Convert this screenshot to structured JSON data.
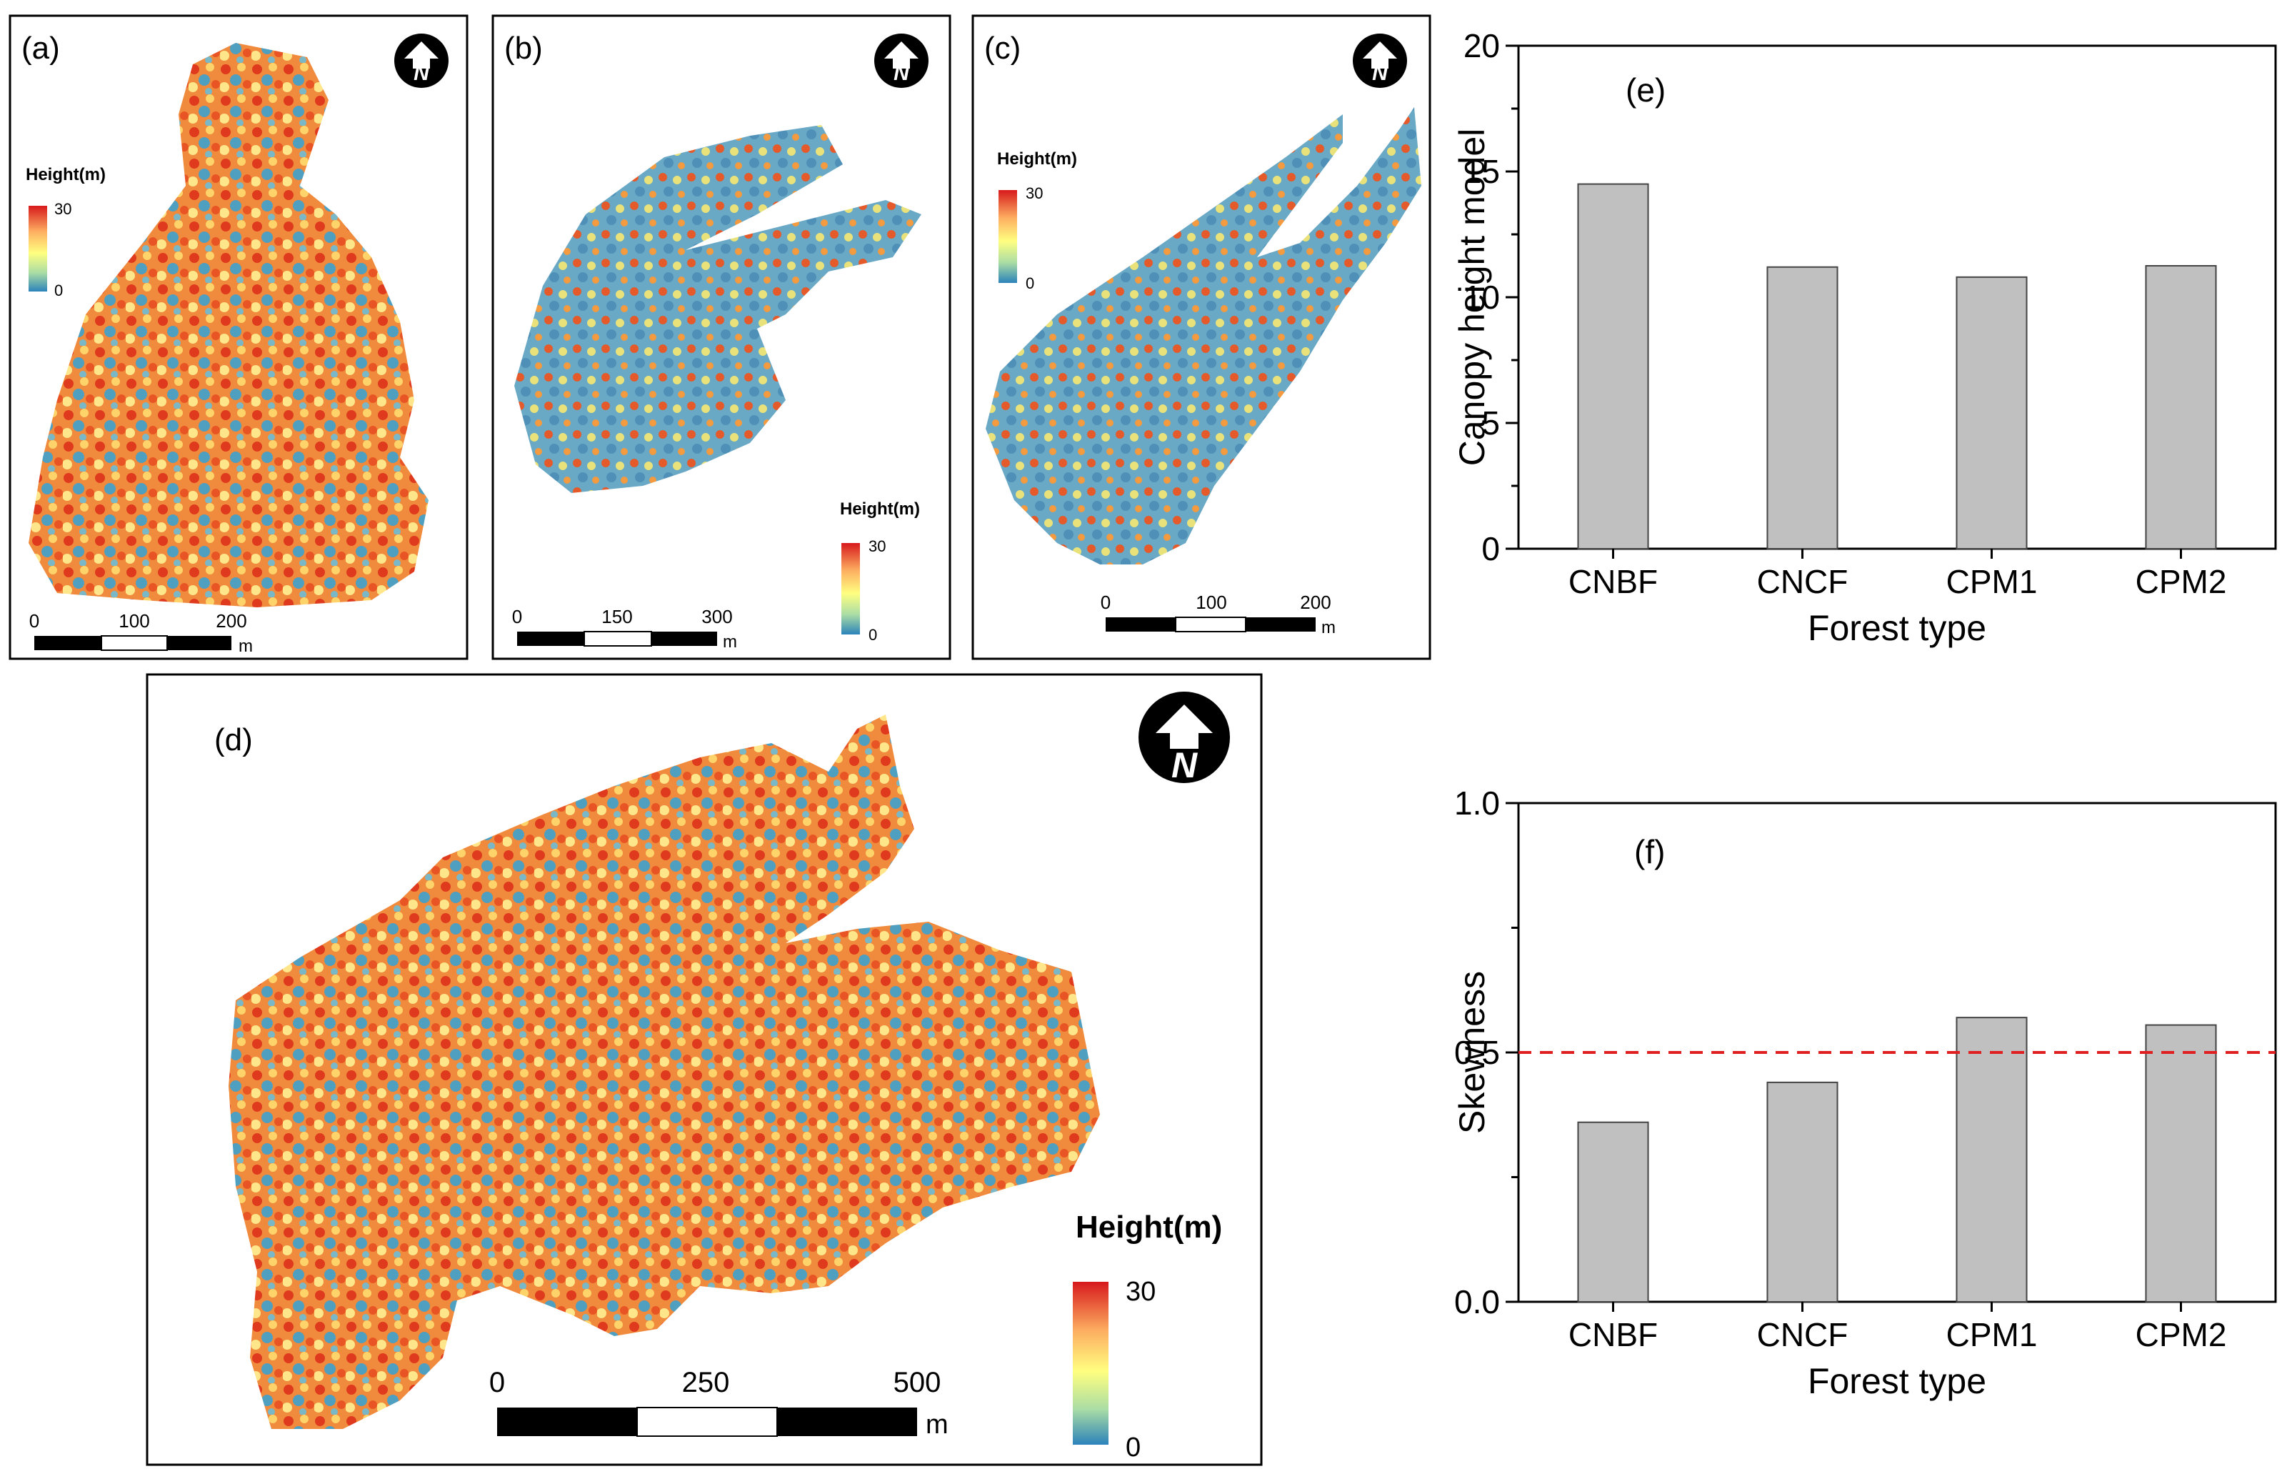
{
  "maps": [
    {
      "panel": "(a)",
      "legend_title": "Height(m)",
      "legend_max": "30",
      "legend_min": "0",
      "scale_ticks": [
        "0",
        "100",
        "200"
      ],
      "scale_unit": "m",
      "north_letter": "N"
    },
    {
      "panel": "(b)",
      "legend_title": "Height(m)",
      "legend_max": "30",
      "legend_min": "0",
      "scale_ticks": [
        "0",
        "150",
        "300"
      ],
      "scale_unit": "m",
      "north_letter": "N"
    },
    {
      "panel": "(c)",
      "legend_title": "Height(m)",
      "legend_max": "30",
      "legend_min": "0",
      "scale_ticks": [
        "0",
        "100",
        "200"
      ],
      "scale_unit": "m",
      "north_letter": "N"
    },
    {
      "panel": "(d)",
      "legend_title": "Height(m)",
      "legend_max": "30",
      "legend_min": "0",
      "scale_ticks": [
        "0",
        "250",
        "500"
      ],
      "scale_unit": "m",
      "north_letter": "N"
    }
  ],
  "colors": {
    "bar_fill": "#c0c0c0",
    "bar_stroke": "#444444",
    "ref_line": "#e02020",
    "legend_top": "#d7191c",
    "legend_mid": "#ffff80",
    "legend_bottom": "#2b83ba"
  },
  "chart_data": [
    {
      "panel": "(e)",
      "type": "bar",
      "categories": [
        "CNBF",
        "CNCF",
        "CPM1",
        "CPM2"
      ],
      "values": [
        14.5,
        11.2,
        10.8,
        11.25
      ],
      "xlabel": "Forest type",
      "ylabel": "Canopy height model",
      "ylim": [
        0,
        20
      ],
      "yticks": [
        "0",
        "5",
        "10",
        "15",
        "20"
      ]
    },
    {
      "panel": "(f)",
      "type": "bar",
      "categories": [
        "CNBF",
        "CNCF",
        "CPM1",
        "CPM2"
      ],
      "values": [
        0.36,
        0.44,
        0.57,
        0.555
      ],
      "xlabel": "Forest type",
      "ylabel": "Skewness",
      "ylim": [
        0,
        1
      ],
      "yticks": [
        "0.0",
        "0.5",
        "1.0"
      ],
      "reference_line": 0.5
    }
  ]
}
